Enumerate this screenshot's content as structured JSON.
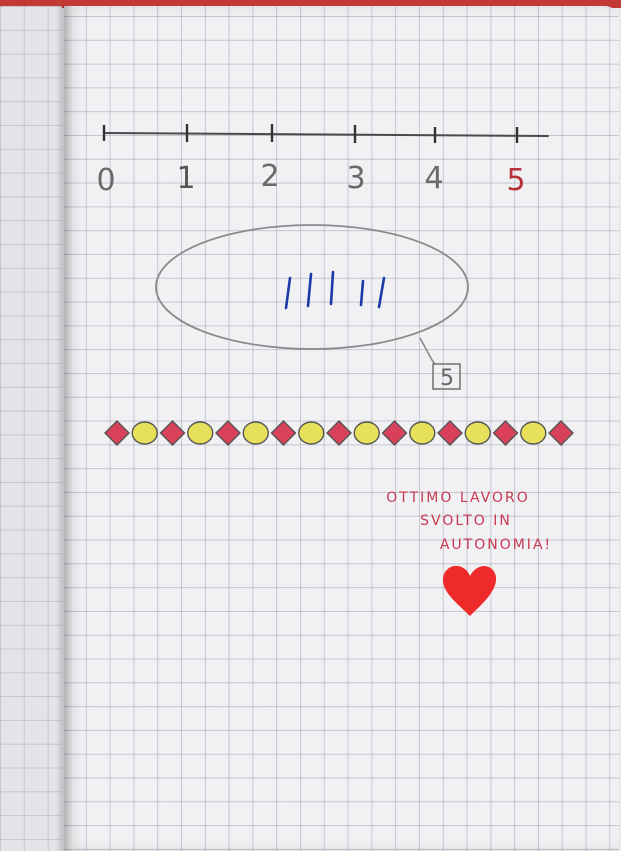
{
  "number_line": {
    "labels": [
      "0",
      "1",
      "2",
      "3",
      "4",
      "5"
    ],
    "line_color": "#4a4a4a",
    "label_color": "#6a6a6a",
    "highlight_label_color": "#b8323b"
  },
  "tally": {
    "mark_count": 5,
    "color": "#1b3aa8"
  },
  "answer_box": {
    "value": "5"
  },
  "sequence": {
    "pattern": [
      "diamond-red",
      "circle-yellow",
      "diamond-red",
      "circle-yellow",
      "diamond-red",
      "circle-yellow",
      "diamond-red",
      "circle-yellow",
      "diamond-red",
      "circle-yellow",
      "diamond-red",
      "circle-yellow",
      "diamond-red",
      "circle-yellow",
      "diamond-red",
      "circle-yellow",
      "diamond-red"
    ],
    "red": "#d9415a",
    "yellow": "#e7e05a"
  },
  "teacher_note": {
    "lines": [
      "OTTIMO LAVORO",
      "SVOLTO IN",
      "AUTONOMIA!"
    ],
    "color": "#c83a52",
    "heart_color": "#ef2a2a",
    "heart_icon": "heart-icon"
  }
}
